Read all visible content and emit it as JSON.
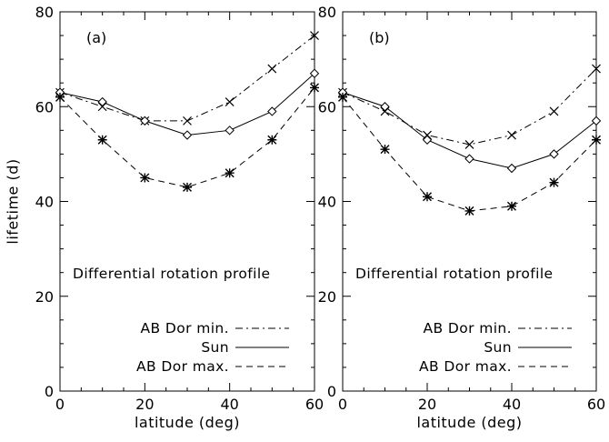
{
  "chart_data": [
    {
      "type": "line",
      "panel_label": "(a)",
      "annotation": "Differential rotation profile",
      "xlabel": "latitude (deg)",
      "ylabel": "lifetime (d)",
      "xlim": [
        0,
        60
      ],
      "ylim": [
        0,
        80
      ],
      "xticks": [
        0,
        20,
        40,
        60
      ],
      "yticks": [
        0,
        20,
        40,
        60,
        80
      ],
      "grid": false,
      "legend_position": "bottom-right",
      "x": [
        0,
        10,
        20,
        30,
        40,
        50,
        60
      ],
      "series": [
        {
          "name": "AB Dor min.",
          "line_style": "dash-dot",
          "marker": "x",
          "values": [
            63,
            60,
            57,
            57,
            61,
            68,
            75
          ]
        },
        {
          "name": "Sun",
          "line_style": "solid",
          "marker": "diamond",
          "values": [
            63,
            61,
            57,
            54,
            55,
            59,
            67
          ]
        },
        {
          "name": "AB Dor max.",
          "line_style": "dashed",
          "marker": "asterisk",
          "values": [
            62,
            53,
            45,
            43,
            46,
            53,
            64
          ]
        }
      ]
    },
    {
      "type": "line",
      "panel_label": "(b)",
      "annotation": "Differential rotation profile",
      "xlabel": "latitude (deg)",
      "ylabel": "",
      "xlim": [
        0,
        60
      ],
      "ylim": [
        0,
        80
      ],
      "xticks": [
        0,
        20,
        40,
        60
      ],
      "yticks": [
        0,
        20,
        40,
        60,
        80
      ],
      "grid": false,
      "legend_position": "bottom-right",
      "x": [
        0,
        10,
        20,
        30,
        40,
        50,
        60
      ],
      "series": [
        {
          "name": "AB Dor min.",
          "line_style": "dash-dot",
          "marker": "x",
          "values": [
            63,
            59,
            54,
            52,
            54,
            59,
            68
          ]
        },
        {
          "name": "Sun",
          "line_style": "solid",
          "marker": "diamond",
          "values": [
            63,
            60,
            53,
            49,
            47,
            50,
            57
          ]
        },
        {
          "name": "AB Dor max.",
          "line_style": "dashed",
          "marker": "asterisk",
          "values": [
            62,
            51,
            41,
            38,
            39,
            44,
            53
          ]
        }
      ]
    }
  ]
}
